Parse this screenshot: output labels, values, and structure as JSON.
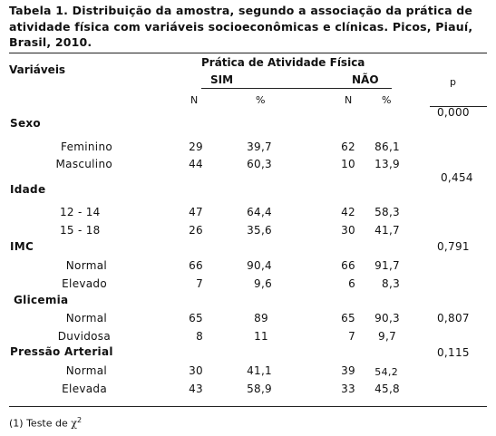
{
  "title_lines": [
    "Tabela 1. Distribuição da amostra, segundo a associação da prática de",
    "atividade física com variáveis socioeconômicas e clínicas. Picos, Piauí,",
    "Brasil, 2010."
  ],
  "header": {
    "variables": "Variáveis",
    "group": "Prática de Atividade Física",
    "sim": "SIM",
    "nao": "NÃO",
    "p": "p",
    "n1": "N",
    "pct1": "%",
    "n2": "N",
    "pct2": "%"
  },
  "groups": [
    {
      "name": "Sexo",
      "p": "0,000",
      "rows": [
        {
          "label": "Feminino",
          "sim_n": "29",
          "sim_pct": "39,7",
          "nao_n": "62",
          "nao_pct": "86,1"
        },
        {
          "label": "Masculino",
          "sim_n": "44",
          "sim_pct": "60,3",
          "nao_n": "10",
          "nao_pct": "13,9"
        }
      ]
    },
    {
      "name": "Idade",
      "p": "0,454",
      "rows": [
        {
          "label": "12 - 14",
          "sim_n": "47",
          "sim_pct": "64,4",
          "nao_n": "42",
          "nao_pct": "58,3"
        },
        {
          "label": "15 - 18",
          "sim_n": "26",
          "sim_pct": "35,6",
          "nao_n": "30",
          "nao_pct": "41,7"
        }
      ]
    },
    {
      "name": "IMC",
      "p": "0,791",
      "rows": [
        {
          "label": "Normal",
          "sim_n": "66",
          "sim_pct": "90,4",
          "nao_n": "66",
          "nao_pct": "91,7"
        },
        {
          "label": "Elevado",
          "sim_n": "7",
          "sim_pct": "9,6",
          "nao_n": "6",
          "nao_pct": "8,3"
        }
      ]
    },
    {
      "name": "Glicemia",
      "p": "0,807",
      "rows": [
        {
          "label": "Normal",
          "sim_n": "65",
          "sim_pct": "89",
          "nao_n": "65",
          "nao_pct": "90,3"
        },
        {
          "label": "Duvidosa",
          "sim_n": "8",
          "sim_pct": "11",
          "nao_n": "7",
          "nao_pct": "9,7"
        }
      ]
    },
    {
      "name": "Pressão Arterial",
      "p": "0,115",
      "rows": [
        {
          "label": "Normal",
          "sim_n": "30",
          "sim_pct": "41,1",
          "nao_n": "39",
          "nao_pct": "54,2"
        },
        {
          "label": "Elevada",
          "sim_n": "43",
          "sim_pct": "58,9",
          "nao_n": "33",
          "nao_pct": "45,8"
        }
      ]
    }
  ],
  "footnote": {
    "prefix": "(1) Teste de ",
    "chi": "χ",
    "sup": "2"
  }
}
